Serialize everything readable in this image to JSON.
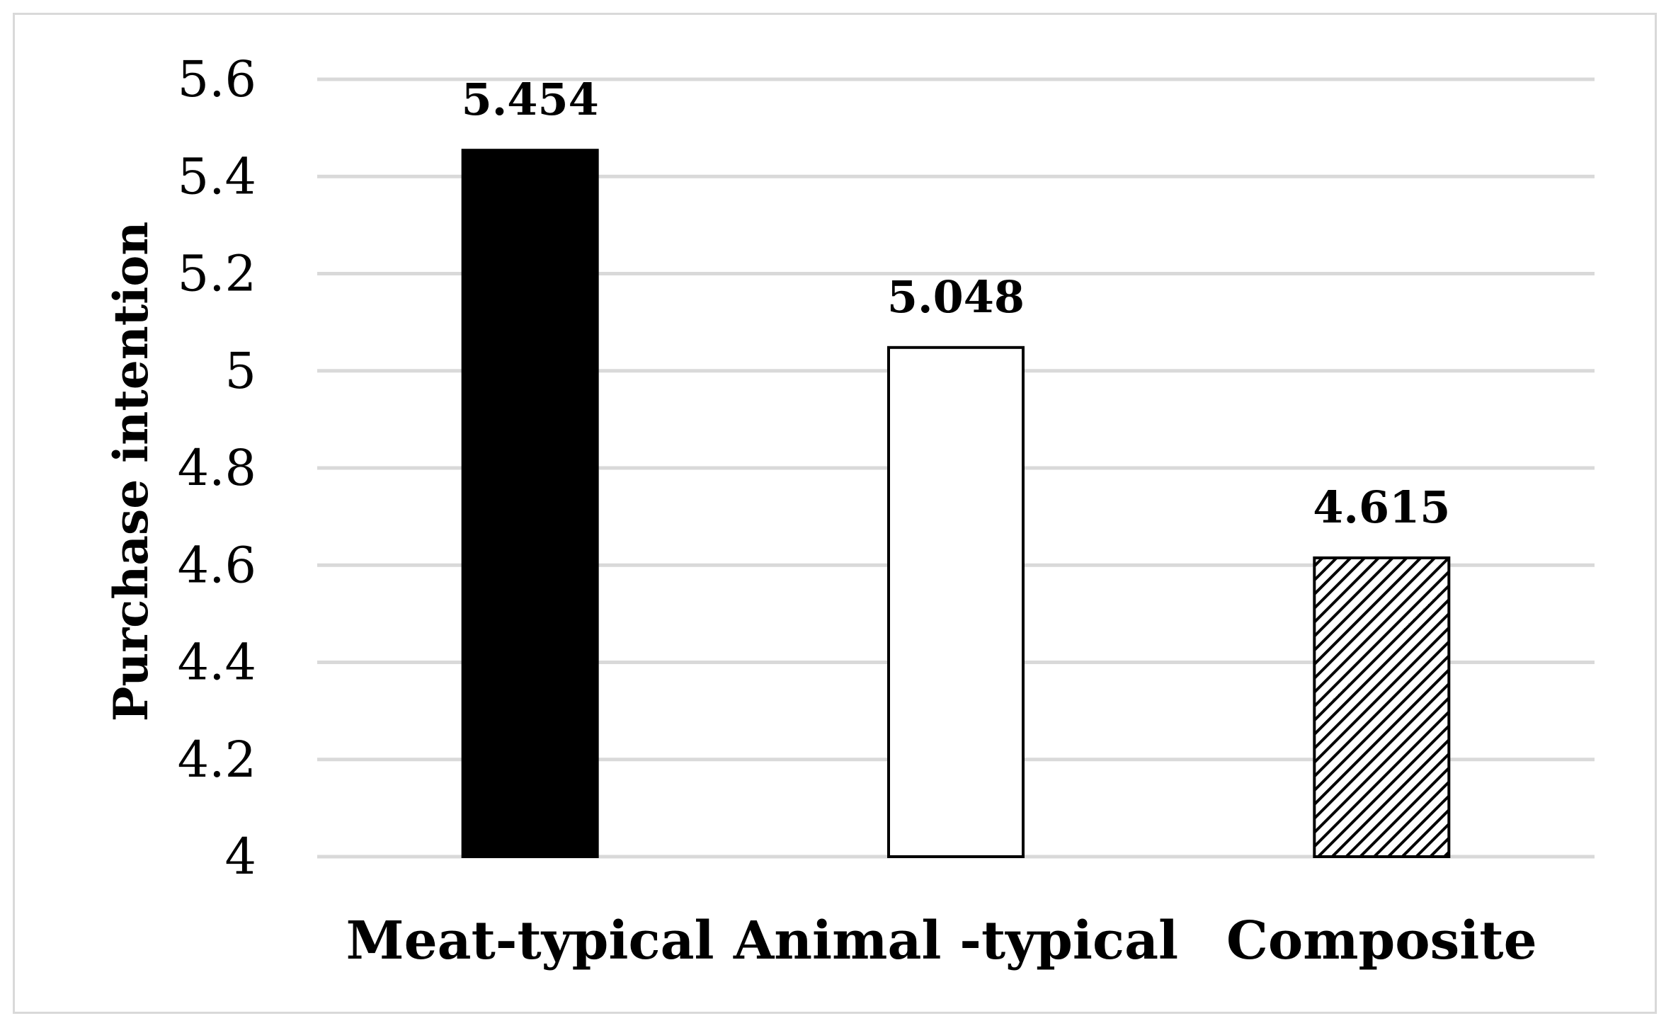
{
  "chart_data": {
    "type": "bar",
    "categories": [
      "Meat-typical",
      "Animal -typical",
      "Composite"
    ],
    "values": [
      5.454,
      5.048,
      4.615
    ],
    "data_labels": [
      "5.454",
      "5.048",
      "4.615"
    ],
    "bar_fills": [
      "solid-black",
      "white",
      "diagonal-hatch"
    ],
    "colors": {
      "bar_stroke": "#000000",
      "grid": "#d9d9d9",
      "text": "#000000"
    },
    "ylabel": "Purchase intention",
    "xlabel": "",
    "ylim": [
      4,
      5.6
    ],
    "yticks": [
      4,
      4.2,
      4.4,
      4.6,
      4.8,
      5,
      5.2,
      5.4,
      5.6
    ],
    "ytick_labels": [
      "4",
      "4.2",
      "4.4",
      "4.6",
      "4.8",
      "5",
      "5.2",
      "5.4",
      "5.6"
    ],
    "grid": true,
    "legend": "none"
  }
}
